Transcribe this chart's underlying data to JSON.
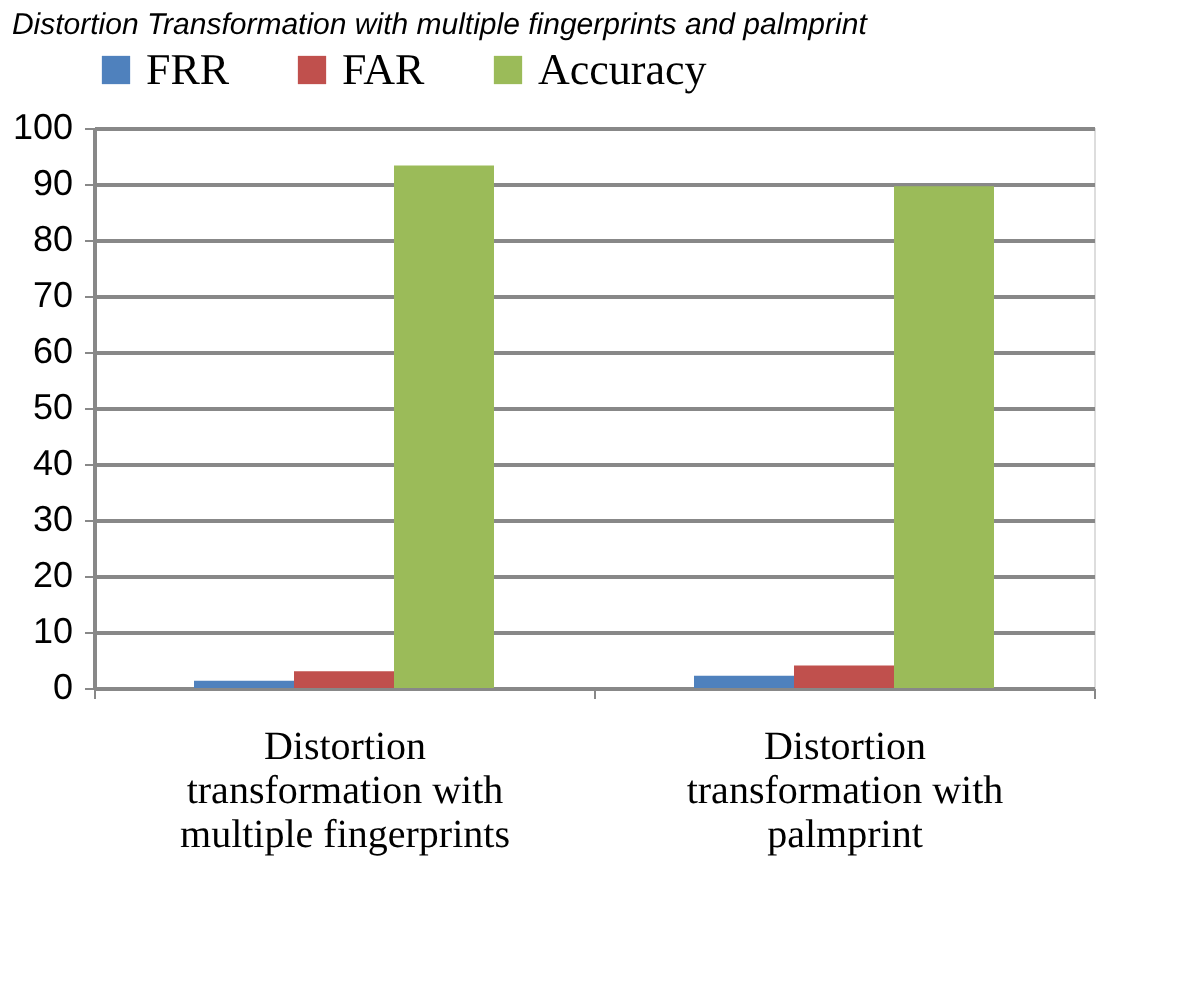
{
  "chart_data": {
    "type": "bar",
    "title": "Distortion Transformation with multiple fingerprints and palmprint",
    "categories": [
      "Distortion transformation with multiple fingerprints",
      "Distortion transformation with palmprint"
    ],
    "series": [
      {
        "name": "FRR",
        "color": "#4f81bd",
        "values": [
          1.3,
          2.2
        ]
      },
      {
        "name": "FAR",
        "color": "#c0504d",
        "values": [
          3.0,
          4.0
        ]
      },
      {
        "name": "Accuracy",
        "color": "#9bbb59",
        "values": [
          93.3,
          89.6
        ]
      }
    ],
    "ylim": [
      0,
      100
    ],
    "yticks": [
      0,
      10,
      20,
      30,
      40,
      50,
      60,
      70,
      80,
      90,
      100
    ],
    "grid": "y",
    "legend": "top"
  }
}
